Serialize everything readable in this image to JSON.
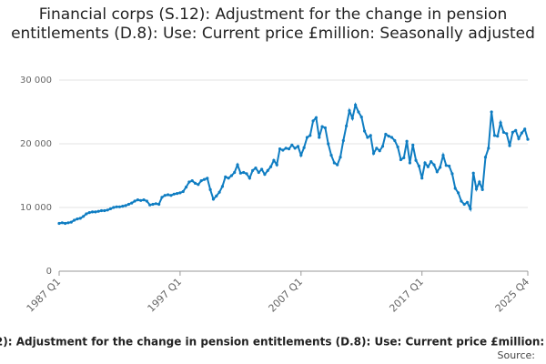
{
  "chart_data": {
    "type": "line",
    "title": "Financial corps (S.12): Adjustment for the change in pension entitlements (D.8): Use: Current price £million: Seasonally adjusted",
    "source_label": "Source:",
    "categories": [
      "1987 Q1",
      null,
      null,
      null,
      null,
      null,
      null,
      null,
      null,
      null,
      null,
      null,
      null,
      null,
      null,
      null,
      null,
      null,
      null,
      null,
      null,
      null,
      null,
      null,
      null,
      null,
      null,
      null,
      null,
      null,
      null,
      null,
      null,
      null,
      null,
      null,
      null,
      null,
      null,
      null,
      "1997 Q1",
      null,
      null,
      null,
      null,
      null,
      null,
      null,
      null,
      null,
      null,
      null,
      null,
      null,
      null,
      null,
      null,
      null,
      null,
      null,
      null,
      null,
      null,
      null,
      null,
      null,
      null,
      null,
      null,
      null,
      null,
      null,
      null,
      null,
      null,
      null,
      null,
      null,
      null,
      null,
      "2007 Q1",
      null,
      null,
      null,
      null,
      null,
      null,
      null,
      null,
      null,
      null,
      null,
      null,
      null,
      null,
      null,
      null,
      null,
      null,
      null,
      null,
      null,
      null,
      null,
      null,
      null,
      null,
      null,
      null,
      null,
      null,
      null,
      null,
      null,
      null,
      null,
      null,
      null,
      null,
      null,
      "2017 Q1",
      null,
      null,
      null,
      null,
      null,
      null,
      null,
      null,
      null,
      null,
      null,
      null,
      null,
      null,
      null,
      null,
      null,
      null,
      null,
      null,
      null,
      null,
      null,
      null,
      null,
      null,
      null,
      null,
      null,
      null,
      null,
      null,
      null,
      null,
      "2025 Q4"
    ],
    "series": [
      {
        "name": "Financial corps (S.12): Adjustment for the change in pension entitlements (D.8): Use: Current price £million: Seasonally adjusted",
        "color": "#0f7dc2",
        "values": [
          7500,
          7600,
          7500,
          7600,
          7700,
          8000,
          8200,
          8300,
          8600,
          9000,
          9200,
          9300,
          9300,
          9400,
          9500,
          9500,
          9600,
          9800,
          10000,
          10100,
          10100,
          10200,
          10300,
          10500,
          10700,
          11000,
          11200,
          11100,
          11200,
          11000,
          10400,
          10500,
          10600,
          10500,
          11600,
          11900,
          12000,
          11900,
          12100,
          12200,
          12300,
          12500,
          13200,
          14000,
          14200,
          13800,
          13600,
          14200,
          14400,
          14600,
          12800,
          11300,
          11800,
          12400,
          13300,
          14800,
          14600,
          15000,
          15500,
          16700,
          15400,
          15500,
          15300,
          14600,
          15800,
          16200,
          15500,
          16000,
          15200,
          15800,
          16400,
          17400,
          16700,
          19200,
          19000,
          19300,
          19200,
          19800,
          19300,
          19600,
          18200,
          19400,
          21000,
          21300,
          23600,
          24100,
          21000,
          22700,
          22500,
          20000,
          18200,
          17000,
          16700,
          17900,
          20500,
          22800,
          25200,
          24000,
          26100,
          25000,
          24200,
          22000,
          21000,
          21300,
          18500,
          19300,
          18900,
          19600,
          21500,
          21200,
          21000,
          20500,
          19500,
          17500,
          17800,
          20400,
          17000,
          19800,
          17400,
          16500,
          14600,
          17000,
          16400,
          17200,
          16700,
          15600,
          16300,
          18200,
          16600,
          16500,
          15300,
          13000,
          12300,
          11000,
          10500,
          10800,
          9800,
          15400,
          12900,
          14000,
          12800,
          17900,
          19300,
          25000,
          21300,
          21200,
          23300,
          21800,
          21600,
          19700,
          21800,
          22100,
          20800,
          21700,
          22300,
          20700
        ]
      }
    ],
    "ylim": [
      0,
      30000
    ],
    "yticks": [
      0,
      {
        "value": 10000,
        "label": "10 000"
      },
      {
        "value": 20000,
        "label": "20 000"
      },
      {
        "value": 30000,
        "label": "30 000"
      }
    ],
    "grid": true
  }
}
